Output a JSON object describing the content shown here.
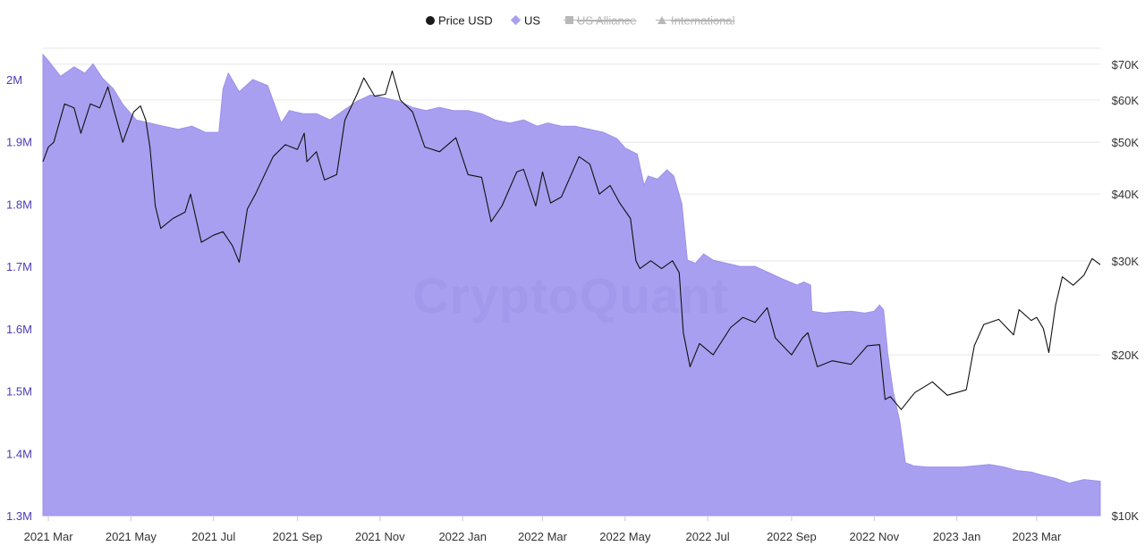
{
  "chart_data": {
    "type": "area",
    "watermark": "CryptoQuant",
    "legend": [
      {
        "name": "Price USD",
        "marker": "circle",
        "color": "#1a1a1a",
        "hidden": false
      },
      {
        "name": "US",
        "marker": "diamond",
        "color": "#8f84e8",
        "hidden": false
      },
      {
        "name": "US Alliance",
        "marker": "square",
        "color": "#b9b9b9",
        "hidden": true
      },
      {
        "name": "International",
        "marker": "triangle",
        "color": "#b9b9b9",
        "hidden": true
      }
    ],
    "legend_position": "top-center",
    "grid": true,
    "x_axis": {
      "type": "date",
      "range": [
        "2021-02-25",
        "2023-04-17"
      ],
      "ticks": [
        {
          "date": "2021-03-01",
          "label": "2021 Mar"
        },
        {
          "date": "2021-05-01",
          "label": "2021 May"
        },
        {
          "date": "2021-07-01",
          "label": "2021 Jul"
        },
        {
          "date": "2021-09-01",
          "label": "2021 Sep"
        },
        {
          "date": "2021-11-01",
          "label": "2021 Nov"
        },
        {
          "date": "2022-01-01",
          "label": "2022 Jan"
        },
        {
          "date": "2022-03-01",
          "label": "2022 Mar"
        },
        {
          "date": "2022-05-01",
          "label": "2022 May"
        },
        {
          "date": "2022-07-01",
          "label": "2022 Jul"
        },
        {
          "date": "2022-09-01",
          "label": "2022 Sep"
        },
        {
          "date": "2022-11-01",
          "label": "2022 Nov"
        },
        {
          "date": "2023-01-01",
          "label": "2023 Jan"
        },
        {
          "date": "2023-03-01",
          "label": "2023 Mar"
        }
      ]
    },
    "y_left": {
      "scale": "linear",
      "range": [
        1300000,
        2050000
      ],
      "ticks": [
        {
          "value": 1300000,
          "label": "1.3M"
        },
        {
          "value": 1400000,
          "label": "1.4M"
        },
        {
          "value": 1500000,
          "label": "1.5M"
        },
        {
          "value": 1600000,
          "label": "1.6M"
        },
        {
          "value": 1700000,
          "label": "1.7M"
        },
        {
          "value": 1800000,
          "label": "1.8M"
        },
        {
          "value": 1900000,
          "label": "1.9M"
        },
        {
          "value": 2000000,
          "label": "2M"
        }
      ]
    },
    "y_right": {
      "scale": "log",
      "range": [
        10000,
        75000
      ],
      "ticks": [
        {
          "value": 10000,
          "label": "$10K"
        },
        {
          "value": 20000,
          "label": "$20K"
        },
        {
          "value": 30000,
          "label": "$30K"
        },
        {
          "value": 40000,
          "label": "$40K"
        },
        {
          "value": 50000,
          "label": "$50K"
        },
        {
          "value": 60000,
          "label": "$60K"
        },
        {
          "value": 70000,
          "label": "$70K"
        }
      ]
    },
    "series": [
      {
        "name": "US",
        "axis": "left",
        "type": "area",
        "color": "#a99ff0",
        "points": [
          [
            "2021-02-25",
            2040000
          ],
          [
            "2021-03-01",
            2030000
          ],
          [
            "2021-03-10",
            2005000
          ],
          [
            "2021-03-20",
            2020000
          ],
          [
            "2021-03-28",
            2010000
          ],
          [
            "2021-04-03",
            2025000
          ],
          [
            "2021-04-10",
            2002000
          ],
          [
            "2021-04-18",
            1985000
          ],
          [
            "2021-04-25",
            1960000
          ],
          [
            "2021-05-05",
            1935000
          ],
          [
            "2021-05-15",
            1930000
          ],
          [
            "2021-05-25",
            1925000
          ],
          [
            "2021-06-05",
            1920000
          ],
          [
            "2021-06-15",
            1925000
          ],
          [
            "2021-06-25",
            1915000
          ],
          [
            "2021-07-05",
            1915000
          ],
          [
            "2021-07-08",
            1985000
          ],
          [
            "2021-07-12",
            2010000
          ],
          [
            "2021-07-20",
            1980000
          ],
          [
            "2021-07-30",
            2000000
          ],
          [
            "2021-08-10",
            1990000
          ],
          [
            "2021-08-20",
            1930000
          ],
          [
            "2021-08-26",
            1950000
          ],
          [
            "2021-09-05",
            1945000
          ],
          [
            "2021-09-15",
            1945000
          ],
          [
            "2021-09-25",
            1935000
          ],
          [
            "2021-10-05",
            1950000
          ],
          [
            "2021-10-15",
            1965000
          ],
          [
            "2021-10-25",
            1975000
          ],
          [
            "2021-11-05",
            1970000
          ],
          [
            "2021-11-15",
            1965000
          ],
          [
            "2021-11-25",
            1955000
          ],
          [
            "2021-12-05",
            1950000
          ],
          [
            "2021-12-15",
            1955000
          ],
          [
            "2021-12-25",
            1950000
          ],
          [
            "2022-01-05",
            1950000
          ],
          [
            "2022-01-15",
            1945000
          ],
          [
            "2022-01-25",
            1935000
          ],
          [
            "2022-02-05",
            1930000
          ],
          [
            "2022-02-15",
            1935000
          ],
          [
            "2022-02-25",
            1925000
          ],
          [
            "2022-03-05",
            1930000
          ],
          [
            "2022-03-15",
            1925000
          ],
          [
            "2022-03-25",
            1925000
          ],
          [
            "2022-04-05",
            1920000
          ],
          [
            "2022-04-15",
            1915000
          ],
          [
            "2022-04-25",
            1905000
          ],
          [
            "2022-05-01",
            1890000
          ],
          [
            "2022-05-10",
            1880000
          ],
          [
            "2022-05-15",
            1830000
          ],
          [
            "2022-05-18",
            1845000
          ],
          [
            "2022-05-25",
            1840000
          ],
          [
            "2022-06-01",
            1855000
          ],
          [
            "2022-06-06",
            1845000
          ],
          [
            "2022-06-12",
            1800000
          ],
          [
            "2022-06-16",
            1710000
          ],
          [
            "2022-06-22",
            1705000
          ],
          [
            "2022-06-28",
            1720000
          ],
          [
            "2022-07-05",
            1710000
          ],
          [
            "2022-07-15",
            1705000
          ],
          [
            "2022-07-25",
            1700000
          ],
          [
            "2022-08-05",
            1700000
          ],
          [
            "2022-08-15",
            1690000
          ],
          [
            "2022-08-25",
            1680000
          ],
          [
            "2022-09-05",
            1670000
          ],
          [
            "2022-09-10",
            1675000
          ],
          [
            "2022-09-15",
            1670000
          ],
          [
            "2022-09-16",
            1628000
          ],
          [
            "2022-09-25",
            1625000
          ],
          [
            "2022-10-05",
            1627000
          ],
          [
            "2022-10-15",
            1628000
          ],
          [
            "2022-10-25",
            1625000
          ],
          [
            "2022-11-01",
            1628000
          ],
          [
            "2022-11-05",
            1638000
          ],
          [
            "2022-11-08",
            1630000
          ],
          [
            "2022-11-11",
            1560000
          ],
          [
            "2022-11-15",
            1500000
          ],
          [
            "2022-11-20",
            1450000
          ],
          [
            "2022-11-24",
            1385000
          ],
          [
            "2022-11-30",
            1380000
          ],
          [
            "2022-12-10",
            1378000
          ],
          [
            "2022-12-20",
            1378000
          ],
          [
            "2023-01-05",
            1378000
          ],
          [
            "2023-01-15",
            1380000
          ],
          [
            "2023-01-25",
            1382000
          ],
          [
            "2023-02-05",
            1378000
          ],
          [
            "2023-02-15",
            1372000
          ],
          [
            "2023-02-25",
            1370000
          ],
          [
            "2023-03-05",
            1365000
          ],
          [
            "2023-03-15",
            1360000
          ],
          [
            "2023-03-25",
            1352000
          ],
          [
            "2023-04-05",
            1358000
          ],
          [
            "2023-04-17",
            1355000
          ]
        ]
      },
      {
        "name": "Price USD",
        "axis": "right",
        "type": "line",
        "color": "#111111",
        "points": [
          [
            "2021-02-25",
            46000
          ],
          [
            "2021-03-01",
            49000
          ],
          [
            "2021-03-05",
            50000
          ],
          [
            "2021-03-13",
            59000
          ],
          [
            "2021-03-20",
            58000
          ],
          [
            "2021-03-25",
            52000
          ],
          [
            "2021-04-01",
            59000
          ],
          [
            "2021-04-08",
            58000
          ],
          [
            "2021-04-14",
            63500
          ],
          [
            "2021-04-18",
            58000
          ],
          [
            "2021-04-25",
            50000
          ],
          [
            "2021-05-03",
            57000
          ],
          [
            "2021-05-08",
            58500
          ],
          [
            "2021-05-12",
            55000
          ],
          [
            "2021-05-15",
            49000
          ],
          [
            "2021-05-19",
            38000
          ],
          [
            "2021-05-23",
            34500
          ],
          [
            "2021-06-01",
            36000
          ],
          [
            "2021-06-10",
            37000
          ],
          [
            "2021-06-14",
            40000
          ],
          [
            "2021-06-22",
            32500
          ],
          [
            "2021-07-01",
            33500
          ],
          [
            "2021-07-08",
            34000
          ],
          [
            "2021-07-15",
            32000
          ],
          [
            "2021-07-20",
            29800
          ],
          [
            "2021-07-26",
            37500
          ],
          [
            "2021-08-01",
            40000
          ],
          [
            "2021-08-14",
            47000
          ],
          [
            "2021-08-23",
            49500
          ],
          [
            "2021-09-01",
            48500
          ],
          [
            "2021-09-06",
            52000
          ],
          [
            "2021-09-08",
            46000
          ],
          [
            "2021-09-15",
            48000
          ],
          [
            "2021-09-21",
            42500
          ],
          [
            "2021-09-30",
            43500
          ],
          [
            "2021-10-06",
            55000
          ],
          [
            "2021-10-15",
            61500
          ],
          [
            "2021-10-20",
            66000
          ],
          [
            "2021-10-28",
            61000
          ],
          [
            "2021-11-05",
            61500
          ],
          [
            "2021-11-10",
            68000
          ],
          [
            "2021-11-16",
            60000
          ],
          [
            "2021-11-25",
            57000
          ],
          [
            "2021-12-04",
            49000
          ],
          [
            "2021-12-15",
            48000
          ],
          [
            "2021-12-27",
            51000
          ],
          [
            "2022-01-05",
            43500
          ],
          [
            "2022-01-15",
            43000
          ],
          [
            "2022-01-22",
            35500
          ],
          [
            "2022-01-30",
            38000
          ],
          [
            "2022-02-10",
            44000
          ],
          [
            "2022-02-15",
            44500
          ],
          [
            "2022-02-24",
            38000
          ],
          [
            "2022-03-01",
            44000
          ],
          [
            "2022-03-07",
            38500
          ],
          [
            "2022-03-15",
            39500
          ],
          [
            "2022-03-28",
            47000
          ],
          [
            "2022-04-05",
            45500
          ],
          [
            "2022-04-12",
            40000
          ],
          [
            "2022-04-20",
            41500
          ],
          [
            "2022-04-27",
            38500
          ],
          [
            "2022-05-05",
            36000
          ],
          [
            "2022-05-09",
            30000
          ],
          [
            "2022-05-12",
            29000
          ],
          [
            "2022-05-20",
            30000
          ],
          [
            "2022-05-28",
            29000
          ],
          [
            "2022-06-05",
            30000
          ],
          [
            "2022-06-10",
            28500
          ],
          [
            "2022-06-13",
            22000
          ],
          [
            "2022-06-18",
            19000
          ],
          [
            "2022-06-25",
            21000
          ],
          [
            "2022-07-05",
            20000
          ],
          [
            "2022-07-18",
            22500
          ],
          [
            "2022-07-27",
            23500
          ],
          [
            "2022-08-05",
            23000
          ],
          [
            "2022-08-14",
            24500
          ],
          [
            "2022-08-20",
            21500
          ],
          [
            "2022-09-01",
            20000
          ],
          [
            "2022-09-09",
            21500
          ],
          [
            "2022-09-13",
            22000
          ],
          [
            "2022-09-20",
            19000
          ],
          [
            "2022-10-01",
            19500
          ],
          [
            "2022-10-15",
            19200
          ],
          [
            "2022-10-27",
            20800
          ],
          [
            "2022-11-05",
            20900
          ],
          [
            "2022-11-09",
            16500
          ],
          [
            "2022-11-13",
            16700
          ],
          [
            "2022-11-21",
            15800
          ],
          [
            "2022-12-01",
            17000
          ],
          [
            "2022-12-14",
            17800
          ],
          [
            "2022-12-25",
            16800
          ],
          [
            "2023-01-08",
            17200
          ],
          [
            "2023-01-14",
            20800
          ],
          [
            "2023-01-21",
            22800
          ],
          [
            "2023-02-01",
            23300
          ],
          [
            "2023-02-12",
            21800
          ],
          [
            "2023-02-16",
            24300
          ],
          [
            "2023-02-25",
            23200
          ],
          [
            "2023-03-01",
            23500
          ],
          [
            "2023-03-06",
            22400
          ],
          [
            "2023-03-10",
            20200
          ],
          [
            "2023-03-15",
            24800
          ],
          [
            "2023-03-20",
            28000
          ],
          [
            "2023-03-28",
            27000
          ],
          [
            "2023-04-05",
            28200
          ],
          [
            "2023-04-11",
            30300
          ],
          [
            "2023-04-17",
            29500
          ]
        ]
      }
    ]
  }
}
